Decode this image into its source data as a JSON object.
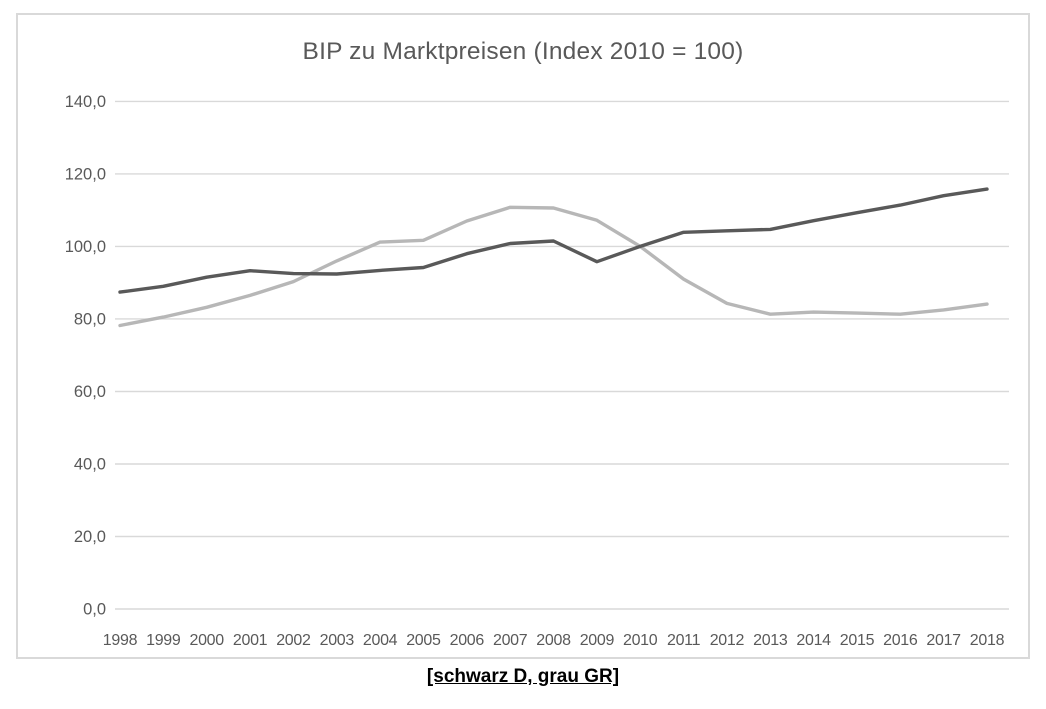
{
  "chart_data": {
    "type": "line",
    "title": "BIP zu Marktpreisen (Index 2010 = 100)",
    "categories": [
      "1998",
      "1999",
      "2000",
      "2001",
      "2002",
      "2003",
      "2004",
      "2005",
      "2006",
      "2007",
      "2008",
      "2009",
      "2010",
      "2011",
      "2012",
      "2013",
      "2014",
      "2015",
      "2016",
      "2017",
      "2018"
    ],
    "series": [
      {
        "id": "d",
        "name": "D (schwarz)",
        "color": "#595959",
        "values": [
          87.4,
          89.0,
          91.5,
          93.3,
          92.5,
          92.4,
          93.4,
          94.2,
          98.0,
          100.8,
          101.5,
          95.8,
          100.0,
          103.9,
          104.3,
          104.7,
          107.1,
          109.3,
          111.4,
          114.0,
          115.8
        ]
      },
      {
        "id": "gr",
        "name": "GR (grau)",
        "color": "#b7b7b7",
        "values": [
          78.2,
          80.5,
          83.2,
          86.5,
          90.3,
          96.0,
          101.2,
          101.7,
          107.0,
          110.8,
          110.6,
          107.2,
          100.0,
          91.0,
          84.3,
          81.3,
          81.9,
          81.6,
          81.3,
          82.5,
          84.1
        ]
      }
    ],
    "ylim": [
      0,
      140
    ],
    "y_ticks": [
      {
        "value": 0,
        "label": "0,0"
      },
      {
        "value": 20,
        "label": "20,0"
      },
      {
        "value": 40,
        "label": "40,0"
      },
      {
        "value": 60,
        "label": "60,0"
      },
      {
        "value": 80,
        "label": "80,0"
      },
      {
        "value": 100,
        "label": "100,0"
      },
      {
        "value": 120,
        "label": "120,0"
      },
      {
        "value": 140,
        "label": "140,0"
      }
    ],
    "grid": "horizontal",
    "legend_position": "none"
  },
  "caption": {
    "text": "[schwarz D, grau GR]"
  },
  "colors": {
    "grid": "#d9d9d9",
    "border": "#d9d9d9",
    "axis_text": "#595959",
    "title_text": "#595959",
    "background": "#ffffff",
    "series_dark": "#595959",
    "series_gray": "#b7b7b7"
  }
}
